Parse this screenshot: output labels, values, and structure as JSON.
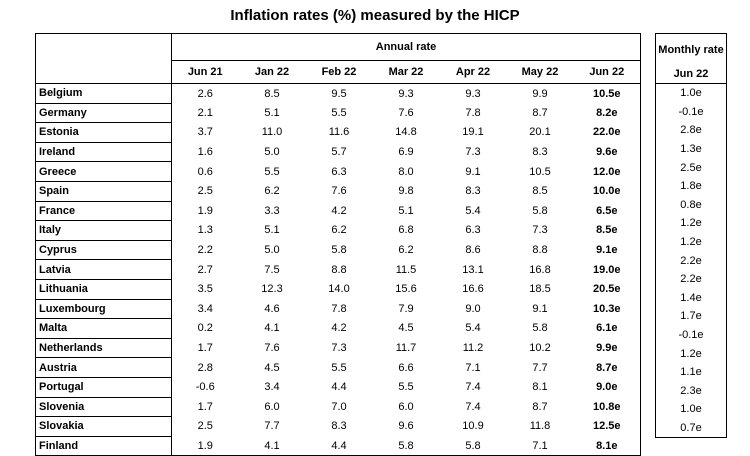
{
  "title": "Inflation rates (%) measured by the HICP",
  "annual_header": "Annual rate",
  "monthly_header": "Monthly rate",
  "months": [
    "Jun 21",
    "Jan 22",
    "Feb 22",
    "Mar 22",
    "Apr 22",
    "May 22",
    "Jun 22"
  ],
  "monthly_month": "Jun 22",
  "rows": [
    {
      "country": "Belgium",
      "annual": [
        "2.6",
        "8.5",
        "9.5",
        "9.3",
        "9.3",
        "9.9",
        "10.5e"
      ],
      "monthly": "1.0e"
    },
    {
      "country": "Germany",
      "annual": [
        "2.1",
        "5.1",
        "5.5",
        "7.6",
        "7.8",
        "8.7",
        "8.2e"
      ],
      "monthly": "-0.1e"
    },
    {
      "country": "Estonia",
      "annual": [
        "3.7",
        "11.0",
        "11.6",
        "14.8",
        "19.1",
        "20.1",
        "22.0e"
      ],
      "monthly": "2.8e"
    },
    {
      "country": "Ireland",
      "annual": [
        "1.6",
        "5.0",
        "5.7",
        "6.9",
        "7.3",
        "8.3",
        "9.6e"
      ],
      "monthly": "1.3e"
    },
    {
      "country": "Greece",
      "annual": [
        "0.6",
        "5.5",
        "6.3",
        "8.0",
        "9.1",
        "10.5",
        "12.0e"
      ],
      "monthly": "2.5e"
    },
    {
      "country": "Spain",
      "annual": [
        "2.5",
        "6.2",
        "7.6",
        "9.8",
        "8.3",
        "8.5",
        "10.0e"
      ],
      "monthly": "1.8e"
    },
    {
      "country": "France",
      "annual": [
        "1.9",
        "3.3",
        "4.2",
        "5.1",
        "5.4",
        "5.8",
        "6.5e"
      ],
      "monthly": "0.8e"
    },
    {
      "country": "Italy",
      "annual": [
        "1.3",
        "5.1",
        "6.2",
        "6.8",
        "6.3",
        "7.3",
        "8.5e"
      ],
      "monthly": "1.2e"
    },
    {
      "country": "Cyprus",
      "annual": [
        "2.2",
        "5.0",
        "5.8",
        "6.2",
        "8.6",
        "8.8",
        "9.1e"
      ],
      "monthly": "1.2e"
    },
    {
      "country": "Latvia",
      "annual": [
        "2.7",
        "7.5",
        "8.8",
        "11.5",
        "13.1",
        "16.8",
        "19.0e"
      ],
      "monthly": "2.2e"
    },
    {
      "country": "Lithuania",
      "annual": [
        "3.5",
        "12.3",
        "14.0",
        "15.6",
        "16.6",
        "18.5",
        "20.5e"
      ],
      "monthly": "2.2e"
    },
    {
      "country": "Luxembourg",
      "annual": [
        "3.4",
        "4.6",
        "7.8",
        "7.9",
        "9.0",
        "9.1",
        "10.3e"
      ],
      "monthly": "1.4e"
    },
    {
      "country": "Malta",
      "annual": [
        "0.2",
        "4.1",
        "4.2",
        "4.5",
        "5.4",
        "5.8",
        "6.1e"
      ],
      "monthly": "1.7e"
    },
    {
      "country": "Netherlands",
      "annual": [
        "1.7",
        "7.6",
        "7.3",
        "11.7",
        "11.2",
        "10.2",
        "9.9e"
      ],
      "monthly": "-0.1e"
    },
    {
      "country": "Austria",
      "annual": [
        "2.8",
        "4.5",
        "5.5",
        "6.6",
        "7.1",
        "7.7",
        "8.7e"
      ],
      "monthly": "1.2e"
    },
    {
      "country": "Portugal",
      "annual": [
        "-0.6",
        "3.4",
        "4.4",
        "5.5",
        "7.4",
        "8.1",
        "9.0e"
      ],
      "monthly": "1.1e"
    },
    {
      "country": "Slovenia",
      "annual": [
        "1.7",
        "6.0",
        "7.0",
        "6.0",
        "7.4",
        "8.7",
        "10.8e"
      ],
      "monthly": "2.3e"
    },
    {
      "country": "Slovakia",
      "annual": [
        "2.5",
        "7.7",
        "8.3",
        "9.6",
        "10.9",
        "11.8",
        "12.5e"
      ],
      "monthly": "1.0e"
    },
    {
      "country": "Finland",
      "annual": [
        "1.9",
        "4.1",
        "4.4",
        "5.8",
        "5.8",
        "7.1",
        "8.1e"
      ],
      "monthly": "0.7e"
    }
  ]
}
